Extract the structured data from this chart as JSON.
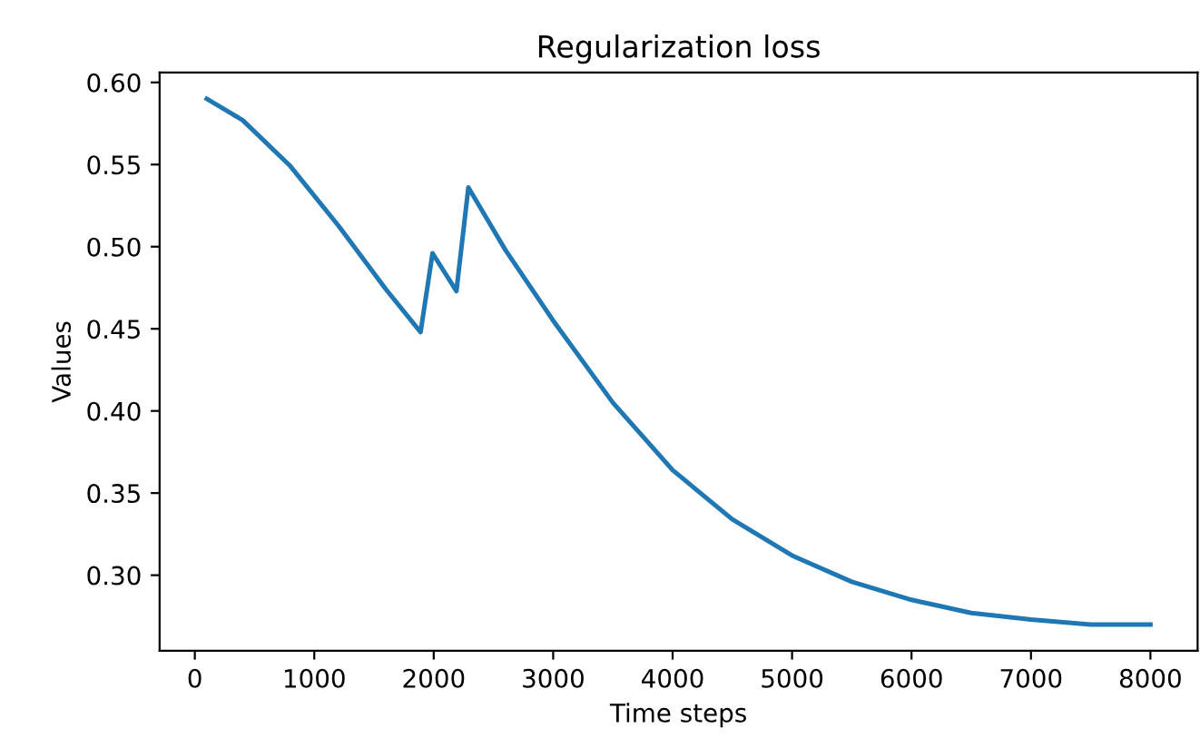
{
  "chart_data": {
    "type": "line",
    "title": "Regularization loss",
    "xlabel": "Time steps",
    "ylabel": "Values",
    "x": [
      100,
      400,
      800,
      1200,
      1600,
      1890,
      1990,
      2190,
      2290,
      2600,
      3000,
      3500,
      4000,
      4500,
      5000,
      5500,
      6000,
      6500,
      7000,
      7500,
      8000
    ],
    "series": [
      {
        "color": "#1f77b4",
        "values": [
          0.59,
          0.577,
          0.549,
          0.513,
          0.474,
          0.448,
          0.496,
          0.473,
          0.536,
          0.498,
          0.455,
          0.405,
          0.364,
          0.334,
          0.312,
          0.296,
          0.285,
          0.277,
          0.273,
          0.27,
          0.27
        ]
      }
    ],
    "xlim": [
      -295,
      8395
    ],
    "xticks": [
      0,
      1000,
      2000,
      3000,
      4000,
      5000,
      6000,
      7000,
      8000
    ],
    "ylim": [
      0.254,
      0.606
    ],
    "yticks": [
      {
        "value": 0.3,
        "label": "0.30"
      },
      {
        "value": 0.35,
        "label": "0.35"
      },
      {
        "value": 0.4,
        "label": "0.40"
      },
      {
        "value": 0.45,
        "label": "0.45"
      },
      {
        "value": 0.5,
        "label": "0.50"
      },
      {
        "value": 0.55,
        "label": "0.55"
      },
      {
        "value": 0.6,
        "label": "0.60"
      }
    ],
    "grid": false
  }
}
